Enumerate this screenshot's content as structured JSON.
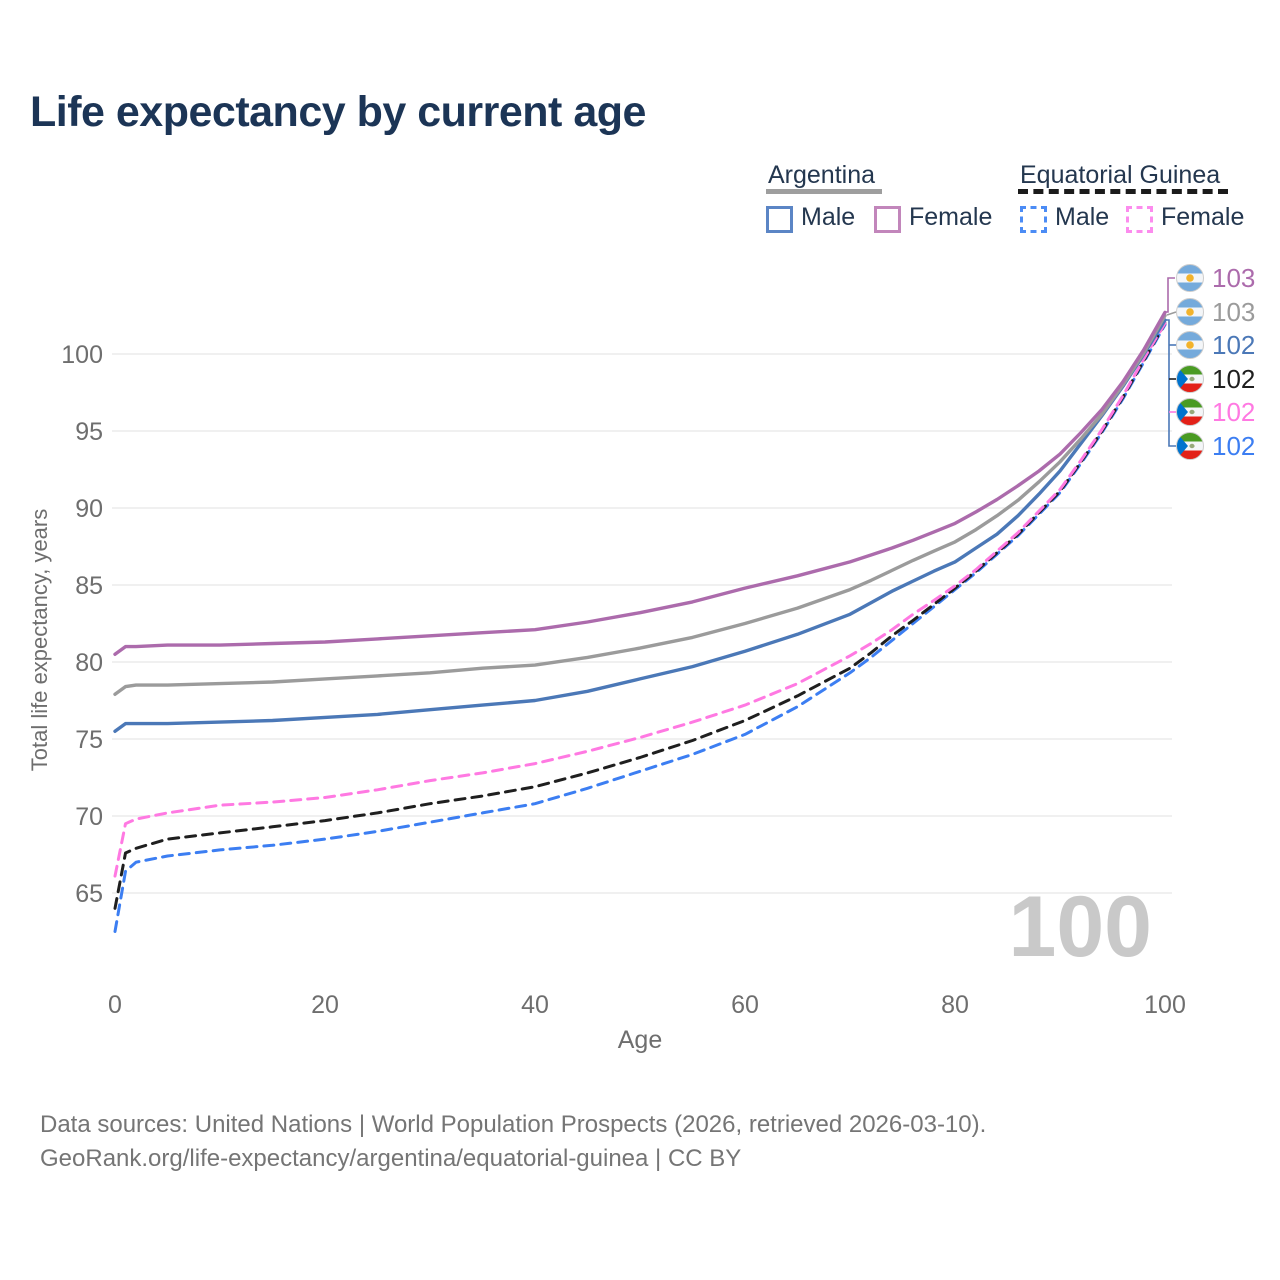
{
  "title": "Life expectancy by current age",
  "legend": {
    "argentina": {
      "label": "Argentina",
      "male": "Male",
      "female": "Female"
    },
    "equatorial_guinea": {
      "label": "Equatorial Guinea",
      "male": "Male",
      "female": "Female"
    }
  },
  "watermark": "100",
  "footer": {
    "line1": "Data sources: United Nations | World Population Prospects (2026, retrieved 2026-03-10).",
    "line2": "GeoRank.org/life-expectancy/argentina/equatorial-guinea | CC BY"
  },
  "colors": {
    "argentina_female": "#ac6bac",
    "argentina_both": "#9b9b9b",
    "argentina_male": "#4b78b7",
    "equatorial_guinea_both": "#1f1f1f",
    "equatorial_guinea_female": "#ff79e2",
    "equatorial_guinea_male": "#3c7ef2",
    "grid": "#e7e7e7",
    "axis_text": "#6e6e6e",
    "watermark": "#c9c9c9",
    "title_text": "#1c3556"
  },
  "chart_data": {
    "type": "line",
    "title": "Life expectancy by current age",
    "xlabel": "Age",
    "ylabel": "Total life expectancy, years",
    "x_ticks": [
      0,
      20,
      40,
      60,
      80,
      100
    ],
    "y_ticks": [
      65,
      70,
      75,
      80,
      85,
      90,
      95,
      100
    ],
    "xlim": [
      0,
      100
    ],
    "ylim": [
      62,
      104
    ],
    "grid": "horizontal-only",
    "legend_position": "top-right",
    "ages": [
      0,
      1,
      2,
      5,
      10,
      15,
      20,
      25,
      30,
      35,
      40,
      45,
      50,
      55,
      60,
      65,
      70,
      72,
      74,
      76,
      78,
      80,
      82,
      84,
      86,
      88,
      90,
      92,
      94,
      96,
      98,
      100
    ],
    "series": [
      {
        "name": "Equatorial Guinea Male",
        "country": "Equatorial Guinea",
        "sex": "Male",
        "color": "#3c7ef2",
        "dash": "dashed",
        "values": [
          62.5,
          66.4,
          67.0,
          67.4,
          67.8,
          68.1,
          68.5,
          69.0,
          69.6,
          70.2,
          70.8,
          71.8,
          72.9,
          74.0,
          75.3,
          77.1,
          79.3,
          80.3,
          81.4,
          82.5,
          83.6,
          84.7,
          85.8,
          87.0,
          88.2,
          89.6,
          91.0,
          92.9,
          94.9,
          97.1,
          99.5,
          101.9
        ],
        "end_label": 102
      },
      {
        "name": "Equatorial Guinea Both sexes",
        "country": "Equatorial Guinea",
        "sex": "Both",
        "color": "#1f1f1f",
        "dash": "dashed",
        "values": [
          64.0,
          67.6,
          67.9,
          68.5,
          68.9,
          69.3,
          69.7,
          70.2,
          70.8,
          71.3,
          71.9,
          72.8,
          73.8,
          74.9,
          76.2,
          77.8,
          79.6,
          80.6,
          81.7,
          82.7,
          83.75,
          84.8,
          85.9,
          87.1,
          88.3,
          89.7,
          91.1,
          93.0,
          95.0,
          97.2,
          99.6,
          102.0
        ],
        "end_label": 102
      },
      {
        "name": "Equatorial Guinea Female",
        "country": "Equatorial Guinea",
        "sex": "Female",
        "color": "#ff79e2",
        "dash": "dashed",
        "values": [
          66.1,
          69.5,
          69.8,
          70.2,
          70.7,
          70.9,
          71.2,
          71.7,
          72.3,
          72.8,
          73.4,
          74.2,
          75.1,
          76.1,
          77.2,
          78.6,
          80.4,
          81.2,
          82.1,
          83.1,
          84.0,
          84.95,
          86.0,
          87.2,
          88.4,
          89.8,
          91.2,
          93.1,
          95.1,
          97.3,
          99.7,
          102.0
        ],
        "end_label": 102
      },
      {
        "name": "Argentina Male",
        "country": "Argentina",
        "sex": "Male",
        "color": "#4b78b7",
        "dash": "solid",
        "values": [
          75.5,
          76.0,
          76.0,
          76.0,
          76.1,
          76.2,
          76.4,
          76.6,
          76.9,
          77.2,
          77.5,
          78.1,
          78.9,
          79.7,
          80.7,
          81.8,
          83.1,
          83.85,
          84.6,
          85.25,
          85.9,
          86.5,
          87.4,
          88.3,
          89.5,
          90.9,
          92.4,
          94.2,
          96.0,
          97.9,
          100.0,
          102.2
        ],
        "end_label": 102
      },
      {
        "name": "Argentina Both sexes",
        "country": "Argentina",
        "sex": "Both",
        "color": "#9b9b9b",
        "dash": "solid",
        "values": [
          77.9,
          78.4,
          78.5,
          78.5,
          78.6,
          78.7,
          78.9,
          79.1,
          79.3,
          79.6,
          79.8,
          80.3,
          80.9,
          81.6,
          82.5,
          83.5,
          84.7,
          85.3,
          85.95,
          86.6,
          87.2,
          87.8,
          88.6,
          89.5,
          90.5,
          91.7,
          93.0,
          94.5,
          96.1,
          98.0,
          100.1,
          102.5
        ],
        "end_label": 103
      },
      {
        "name": "Argentina Female",
        "country": "Argentina",
        "sex": "Female",
        "color": "#ac6bac",
        "dash": "solid",
        "values": [
          80.5,
          81.0,
          81.0,
          81.1,
          81.1,
          81.2,
          81.3,
          81.5,
          81.7,
          81.9,
          82.1,
          82.6,
          83.2,
          83.9,
          84.8,
          85.6,
          86.5,
          86.95,
          87.4,
          87.9,
          88.45,
          89.0,
          89.75,
          90.55,
          91.45,
          92.4,
          93.5,
          94.9,
          96.4,
          98.2,
          100.3,
          102.7
        ],
        "end_label": 103
      }
    ],
    "right_labels": [
      {
        "flag": "argentina",
        "value": "103",
        "color": "#ac6bac",
        "series": "Argentina Female"
      },
      {
        "flag": "argentina",
        "value": "103",
        "color": "#9b9b9b",
        "series": "Argentina Both sexes"
      },
      {
        "flag": "argentina",
        "value": "102",
        "color": "#4b78b7",
        "series": "Argentina Male"
      },
      {
        "flag": "equatorial-guinea",
        "value": "102",
        "color": "#1f1f1f",
        "series": "Equatorial Guinea Both sexes"
      },
      {
        "flag": "equatorial-guinea",
        "value": "102",
        "color": "#ff79e2",
        "series": "Equatorial Guinea Female"
      },
      {
        "flag": "equatorial-guinea",
        "value": "102",
        "color": "#3c7ef2",
        "series": "Equatorial Guinea Male"
      }
    ]
  }
}
